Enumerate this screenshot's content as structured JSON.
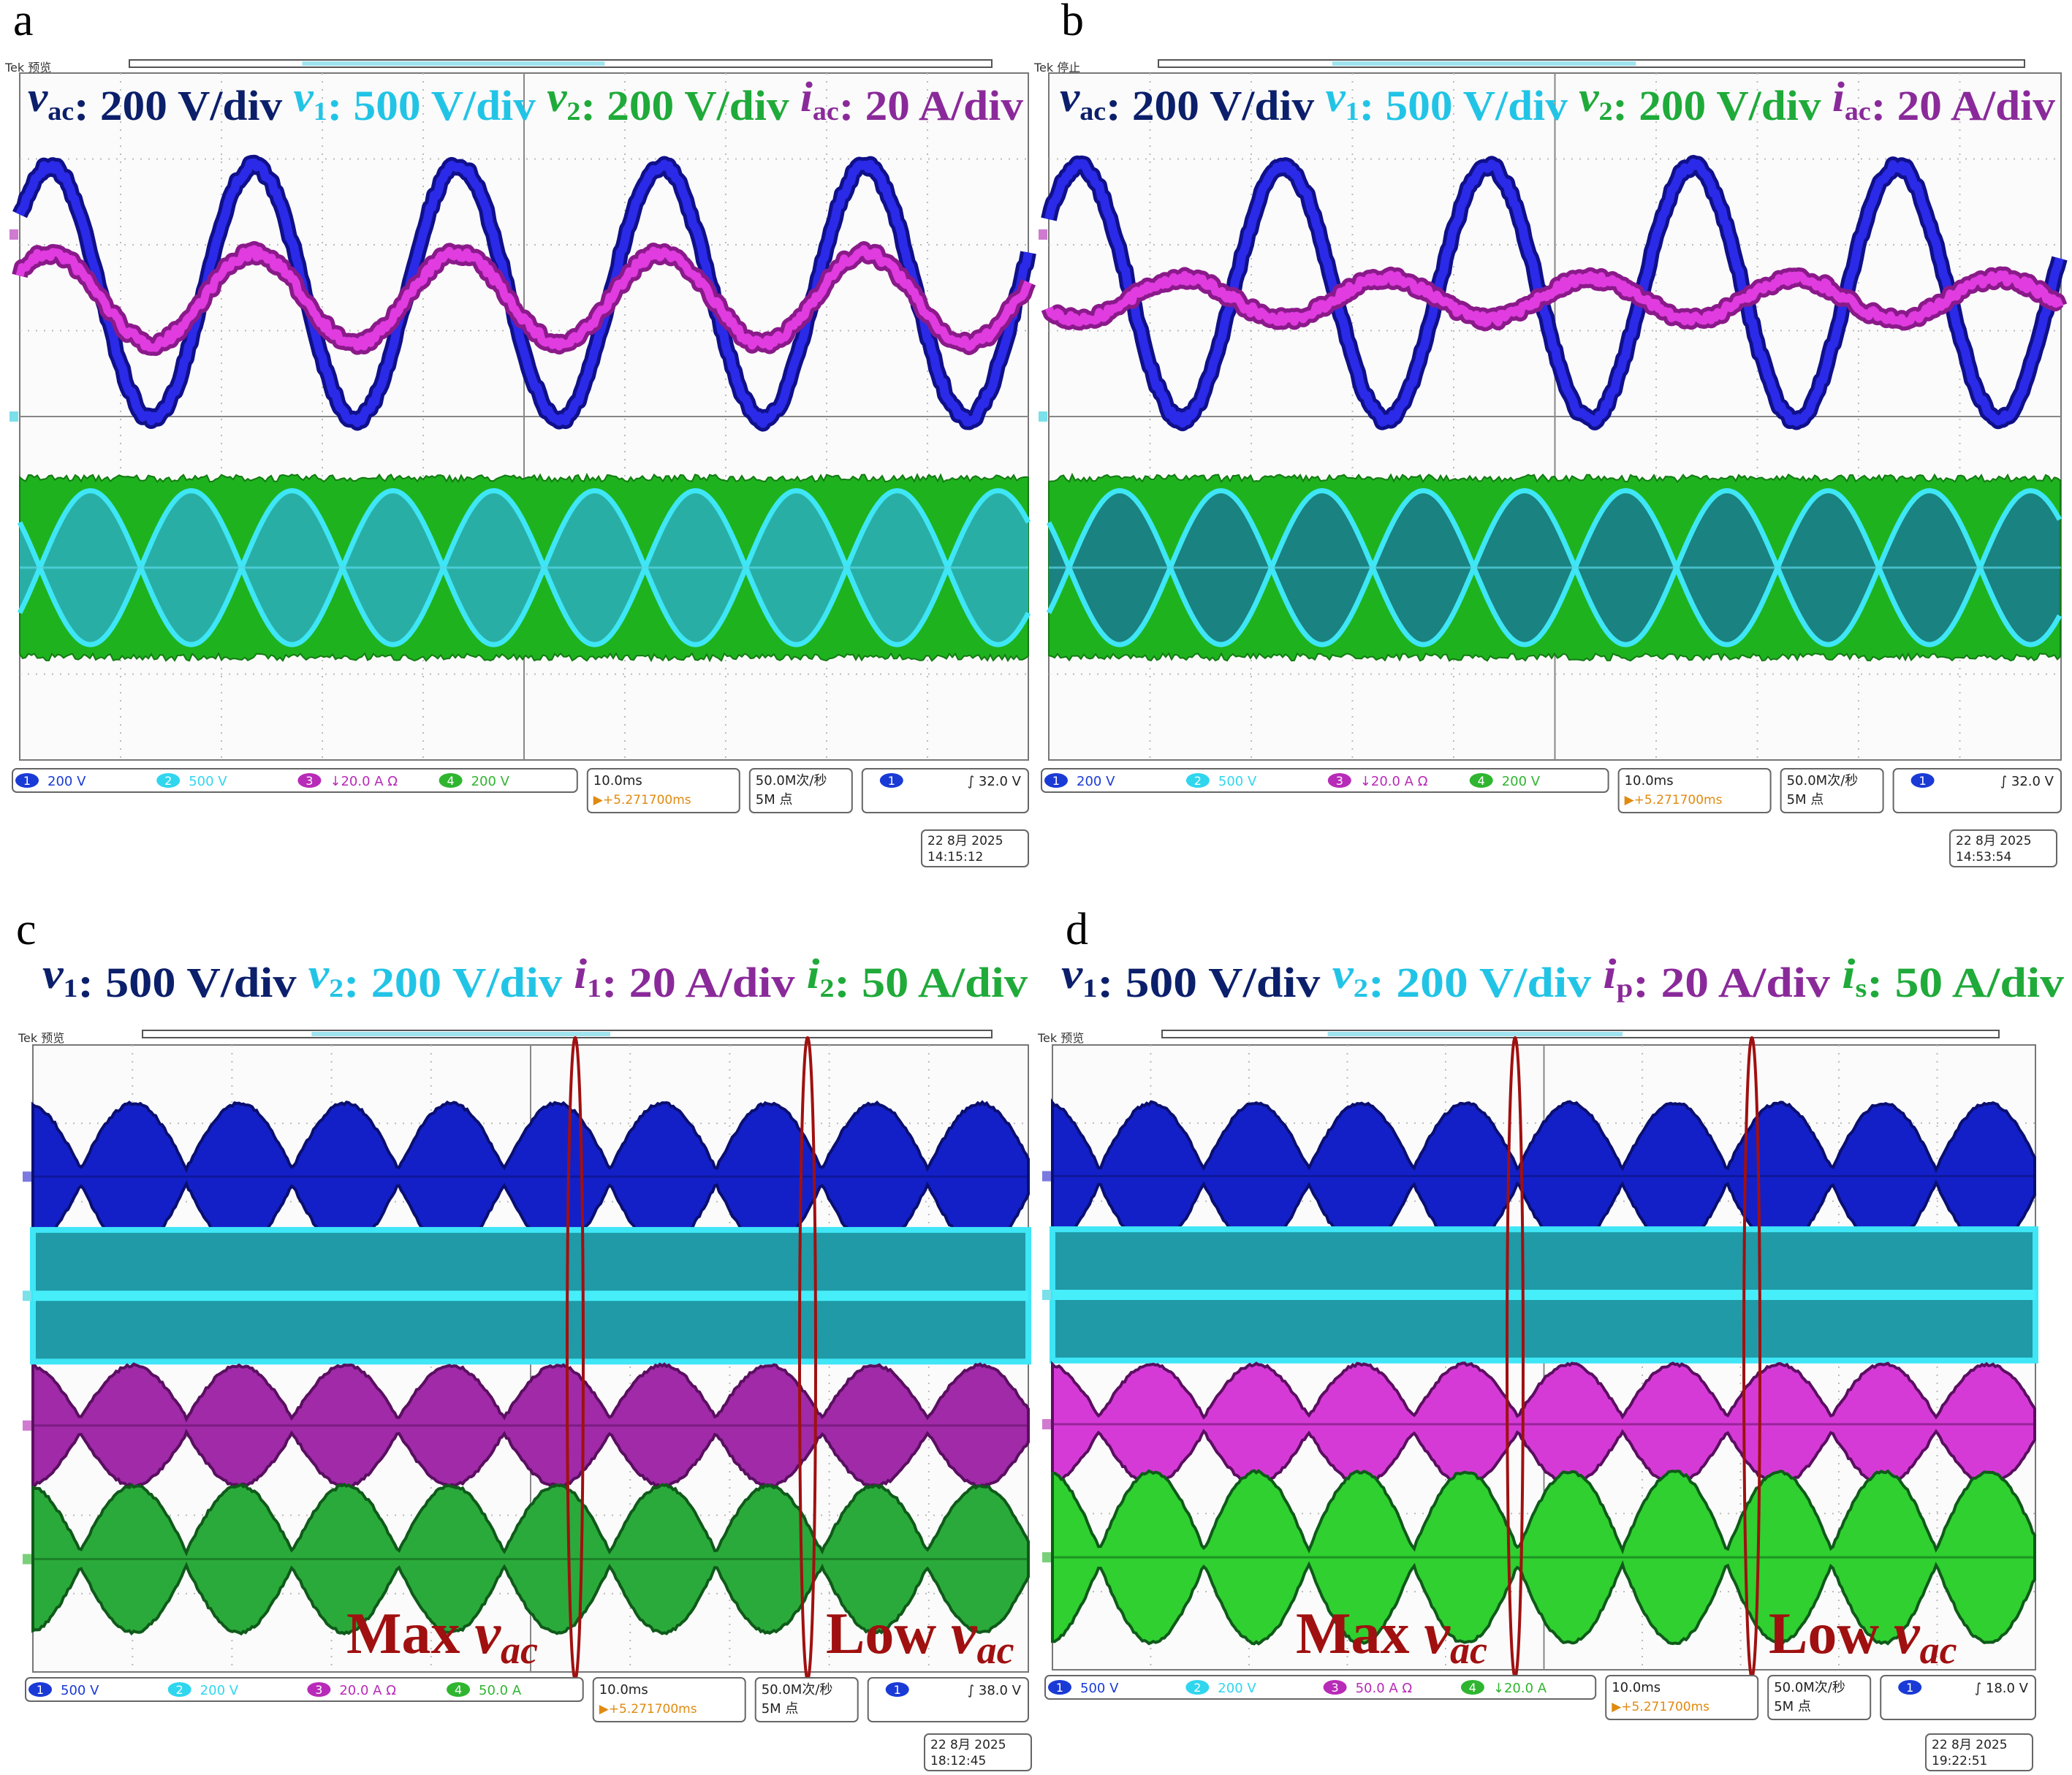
{
  "panels": [
    {
      "label": "a",
      "tek": "Tek 预览",
      "legend": [
        {
          "sym": "v",
          "sub": "ac",
          "text": ": 200 V/div "
        },
        {
          "sym": "v",
          "sub": "1",
          "text": ": 500 V/div "
        },
        {
          "sym": "v",
          "sub": "2",
          "text": ": 200 V/div "
        },
        {
          "sym": "i",
          "sub": "ac",
          "text": ": 20 A/div"
        }
      ],
      "channels": [
        {
          "ch": "1",
          "text": "200 V"
        },
        {
          "ch": "2",
          "text": "500 V"
        },
        {
          "ch": "3",
          "text": "↓20.0 A Ω"
        },
        {
          "ch": "4",
          "text": "200 V"
        }
      ],
      "timebase": "10.0ms",
      "offset": "▶+5.271700ms",
      "rate": "50.0M次/秒",
      "points": "5M 点",
      "trig_ch": "1",
      "trigger": "∫   32.0 V",
      "date": "22 8月 2025",
      "time": "14:15:12",
      "annotations": []
    },
    {
      "label": "b",
      "tek": "Tek 停止",
      "legend": [
        {
          "sym": "v",
          "sub": "ac",
          "text": ": 200 V/div "
        },
        {
          "sym": "v",
          "sub": "1",
          "text": ": 500 V/div "
        },
        {
          "sym": "v",
          "sub": "2",
          "text": ": 200 V/div "
        },
        {
          "sym": "i",
          "sub": "ac",
          "text": ": 20 A/div"
        }
      ],
      "channels": [
        {
          "ch": "1",
          "text": "200 V"
        },
        {
          "ch": "2",
          "text": "500 V"
        },
        {
          "ch": "3",
          "text": "↓20.0 A Ω"
        },
        {
          "ch": "4",
          "text": "200 V"
        }
      ],
      "timebase": "10.0ms",
      "offset": "▶+5.271700ms",
      "rate": "50.0M次/秒",
      "points": "5M 点",
      "trig_ch": "1",
      "trigger": "∫   32.0 V",
      "date": "22 8月 2025",
      "time": "14:53:54",
      "annotations": []
    },
    {
      "label": "c",
      "tek": "Tek 预览",
      "legend": [
        {
          "sym": "v",
          "sub": "1",
          "text": ": 500 V/div "
        },
        {
          "sym": "v",
          "sub": "2",
          "text": ": 200 V/div "
        },
        {
          "sym": "i",
          "sub": "1",
          "text": ": 20 A/div "
        },
        {
          "sym": "i",
          "sub": "2",
          "text": ": 50 A/div"
        }
      ],
      "channels": [
        {
          "ch": "1",
          "text": "500 V"
        },
        {
          "ch": "2",
          "text": "200 V"
        },
        {
          "ch": "3",
          "text": "20.0 A Ω"
        },
        {
          "ch": "4",
          "text": "50.0 A"
        }
      ],
      "timebase": "10.0ms",
      "offset": "▶+5.271700ms",
      "rate": "50.0M次/秒",
      "points": "5M 点",
      "trig_ch": "1",
      "trigger": "∫   38.0 V",
      "date": "22 8月 2025",
      "time": "18:12:45",
      "annotations": [
        {
          "text": "Max ",
          "sym": "v",
          "sub": "ac"
        },
        {
          "text": "Low ",
          "sym": "v",
          "sub": "ac"
        }
      ]
    },
    {
      "label": "d",
      "tek": "Tek 预览",
      "legend": [
        {
          "sym": "v",
          "sub": "1",
          "text": ": 500 V/div "
        },
        {
          "sym": "v",
          "sub": "2",
          "text": ": 200 V/div "
        },
        {
          "sym": "i",
          "sub": "p",
          "text": ": 20 A/div "
        },
        {
          "sym": "i",
          "sub": "s",
          "text": ": 50 A/div"
        }
      ],
      "channels": [
        {
          "ch": "1",
          "text": "500 V"
        },
        {
          "ch": "2",
          "text": "200 V"
        },
        {
          "ch": "3",
          "text": "50.0 A Ω"
        },
        {
          "ch": "4",
          "text": "↓20.0 A"
        }
      ],
      "timebase": "10.0ms",
      "offset": "▶+5.271700ms",
      "rate": "50.0M次/秒",
      "points": "5M 点",
      "trig_ch": "1",
      "trigger": "∫   18.0 V",
      "date": "22 8月 2025",
      "time": "19:22:51",
      "annotations": [
        {
          "text": "Max ",
          "sym": "v",
          "sub": "ac"
        },
        {
          "text": "Low ",
          "sym": "v",
          "sub": "ac"
        }
      ]
    }
  ]
}
